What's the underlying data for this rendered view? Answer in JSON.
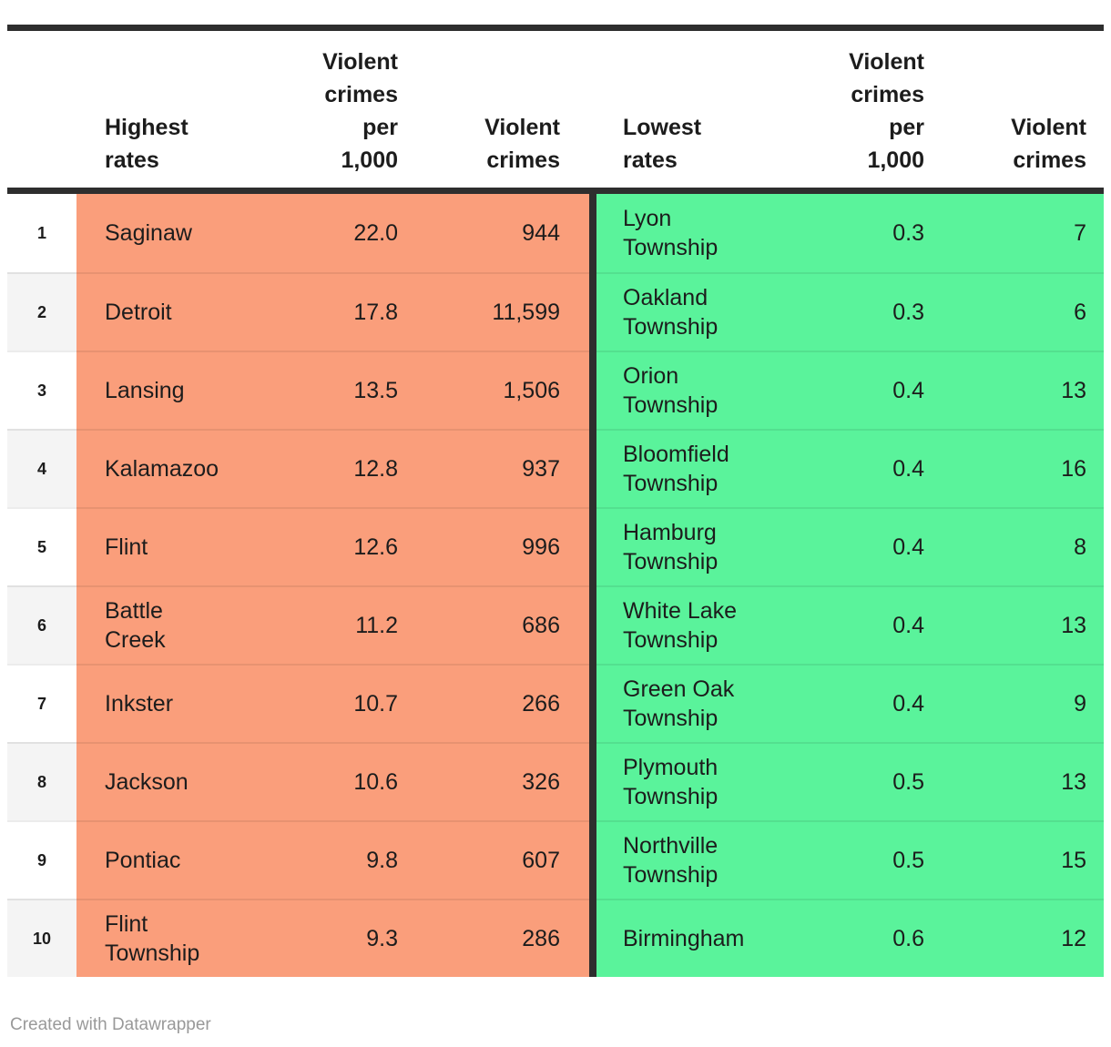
{
  "colors": {
    "bar": "#2e2e2e",
    "highest_bg": "#fa9e7b",
    "lowest_bg": "#5af39b",
    "rank_alt_bg": "#f4f4f4",
    "footer_text": "#999999"
  },
  "headers": {
    "highest_title": "Highest\nrates",
    "highest_rate": "Violent\ncrimes\nper\n1,000",
    "highest_crimes": "Violent\ncrimes",
    "lowest_title": "Lowest\nrates",
    "lowest_rate": "Violent\ncrimes\nper\n1,000",
    "lowest_crimes": "Violent\ncrimes"
  },
  "rows": [
    {
      "rank": "1",
      "highest": {
        "name": "Saginaw",
        "rate": "22.0",
        "crimes": "944"
      },
      "lowest": {
        "name": "Lyon\nTownship",
        "rate": "0.3",
        "crimes": "7"
      }
    },
    {
      "rank": "2",
      "highest": {
        "name": "Detroit",
        "rate": "17.8",
        "crimes": "11,599"
      },
      "lowest": {
        "name": "Oakland\nTownship",
        "rate": "0.3",
        "crimes": "6"
      }
    },
    {
      "rank": "3",
      "highest": {
        "name": "Lansing",
        "rate": "13.5",
        "crimes": "1,506"
      },
      "lowest": {
        "name": "Orion\nTownship",
        "rate": "0.4",
        "crimes": "13"
      }
    },
    {
      "rank": "4",
      "highest": {
        "name": "Kalamazoo",
        "rate": "12.8",
        "crimes": "937"
      },
      "lowest": {
        "name": "Bloomfield\nTownship",
        "rate": "0.4",
        "crimes": "16"
      }
    },
    {
      "rank": "5",
      "highest": {
        "name": "Flint",
        "rate": "12.6",
        "crimes": "996"
      },
      "lowest": {
        "name": "Hamburg\nTownship",
        "rate": "0.4",
        "crimes": "8"
      }
    },
    {
      "rank": "6",
      "highest": {
        "name": "Battle\nCreek",
        "rate": "11.2",
        "crimes": "686"
      },
      "lowest": {
        "name": "White Lake\nTownship",
        "rate": "0.4",
        "crimes": "13"
      }
    },
    {
      "rank": "7",
      "highest": {
        "name": "Inkster",
        "rate": "10.7",
        "crimes": "266"
      },
      "lowest": {
        "name": "Green Oak\nTownship",
        "rate": "0.4",
        "crimes": "9"
      }
    },
    {
      "rank": "8",
      "highest": {
        "name": "Jackson",
        "rate": "10.6",
        "crimes": "326"
      },
      "lowest": {
        "name": "Plymouth\nTownship",
        "rate": "0.5",
        "crimes": "13"
      }
    },
    {
      "rank": "9",
      "highest": {
        "name": "Pontiac",
        "rate": "9.8",
        "crimes": "607"
      },
      "lowest": {
        "name": "Northville\nTownship",
        "rate": "0.5",
        "crimes": "15"
      }
    },
    {
      "rank": "10",
      "highest": {
        "name": "Flint\nTownship",
        "rate": "9.3",
        "crimes": "286"
      },
      "lowest": {
        "name": "Birmingham",
        "rate": "0.6",
        "crimes": "12"
      }
    }
  ],
  "footer": {
    "attribution": "Created with Datawrapper"
  },
  "chart_data": {
    "type": "table",
    "title": "",
    "columns": [
      "Rank",
      "Highest rates",
      "Violent crimes per 1,000",
      "Violent crimes",
      "Lowest rates",
      "Violent crimes per 1,000",
      "Violent crimes"
    ],
    "rows": [
      [
        1,
        "Saginaw",
        22.0,
        944,
        "Lyon Township",
        0.3,
        7
      ],
      [
        2,
        "Detroit",
        17.8,
        11599,
        "Oakland Township",
        0.3,
        6
      ],
      [
        3,
        "Lansing",
        13.5,
        1506,
        "Orion Township",
        0.4,
        13
      ],
      [
        4,
        "Kalamazoo",
        12.8,
        937,
        "Bloomfield Township",
        0.4,
        16
      ],
      [
        5,
        "Flint",
        12.6,
        996,
        "Hamburg Township",
        0.4,
        8
      ],
      [
        6,
        "Battle Creek",
        11.2,
        686,
        "White Lake Township",
        0.4,
        13
      ],
      [
        7,
        "Inkster",
        10.7,
        266,
        "Green Oak Township",
        0.4,
        9
      ],
      [
        8,
        "Jackson",
        10.6,
        326,
        "Plymouth Township",
        0.5,
        13
      ],
      [
        9,
        "Pontiac",
        9.8,
        607,
        "Northville Township",
        0.5,
        15
      ],
      [
        10,
        "Flint Township",
        9.3,
        286,
        "Birmingham",
        0.6,
        12
      ]
    ]
  }
}
